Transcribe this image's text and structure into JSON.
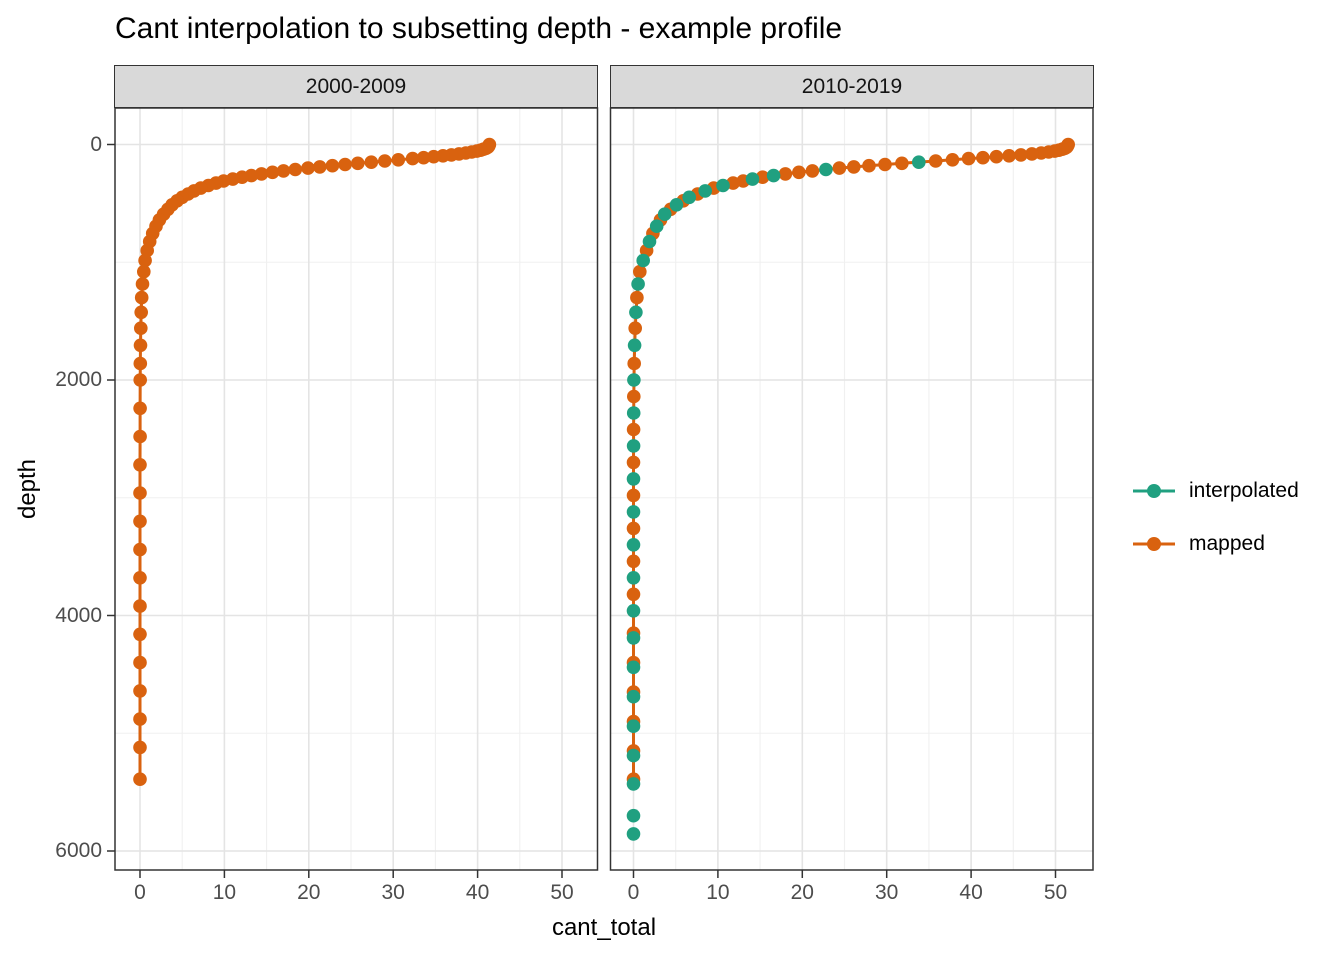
{
  "chart_data": {
    "type": "line",
    "title": "Cant interpolation to subsetting depth - example profile",
    "xlabel": "cant_total",
    "ylabel": "depth",
    "x_ticks": [
      0,
      10,
      20,
      30,
      40,
      50
    ],
    "y_ticks": [
      0,
      2000,
      4000,
      6000
    ],
    "x_minor": [
      5,
      15,
      25,
      35,
      45
    ],
    "y_minor": [
      1000,
      3000,
      5000
    ],
    "xlim": [
      -3,
      54.2
    ],
    "ylim": [
      -310,
      6150
    ],
    "y_reversed": true,
    "grid": "on",
    "legend_position": "right",
    "legend": [
      {
        "label": "interpolated",
        "color": "#20A080"
      },
      {
        "label": "mapped",
        "color": "#D9620F"
      }
    ],
    "facets": [
      {
        "label": "2000-2009",
        "series": [
          {
            "name": "mapped",
            "color": "#D9620F",
            "line": true,
            "points": [
              [
                41.4,
                0
              ],
              [
                41.35,
                8
              ],
              [
                41.3,
                16
              ],
              [
                41.2,
                24
              ],
              [
                41.0,
                32
              ],
              [
                40.7,
                40
              ],
              [
                40.35,
                48
              ],
              [
                39.9,
                56
              ],
              [
                39.3,
                64
              ],
              [
                38.6,
                72
              ],
              [
                37.8,
                80
              ],
              [
                36.9,
                88
              ],
              [
                35.9,
                96
              ],
              [
                34.8,
                104
              ],
              [
                33.6,
                112
              ],
              [
                32.3,
                120
              ],
              [
                30.6,
                130
              ],
              [
                29.0,
                140
              ],
              [
                27.4,
                150
              ],
              [
                25.8,
                160
              ],
              [
                24.3,
                170
              ],
              [
                22.8,
                180
              ],
              [
                21.3,
                190
              ],
              [
                19.9,
                200
              ],
              [
                18.4,
                212
              ],
              [
                17.0,
                224
              ],
              [
                15.7,
                236
              ],
              [
                14.4,
                250
              ],
              [
                13.2,
                264
              ],
              [
                12.1,
                278
              ],
              [
                11.0,
                294
              ],
              [
                9.9,
                310
              ],
              [
                9.0,
                328
              ],
              [
                8.1,
                348
              ],
              [
                7.2,
                370
              ],
              [
                6.4,
                394
              ],
              [
                5.7,
                420
              ],
              [
                5.0,
                448
              ],
              [
                4.4,
                478
              ],
              [
                3.8,
                512
              ],
              [
                3.3,
                550
              ],
              [
                2.8,
                592
              ],
              [
                2.3,
                640
              ],
              [
                1.9,
                694
              ],
              [
                1.5,
                755
              ],
              [
                1.15,
                824
              ],
              [
                0.85,
                900
              ],
              [
                0.6,
                985
              ],
              [
                0.45,
                1080
              ],
              [
                0.3,
                1185
              ],
              [
                0.2,
                1300
              ],
              [
                0.14,
                1425
              ],
              [
                0.1,
                1560
              ],
              [
                0.06,
                1705
              ],
              [
                0.03,
                1860
              ],
              [
                0.02,
                2000
              ],
              [
                0.01,
                2240
              ],
              [
                0.01,
                2480
              ],
              [
                0.0,
                2720
              ],
              [
                0.0,
                2960
              ],
              [
                0.0,
                3200
              ],
              [
                0.0,
                3440
              ],
              [
                0.0,
                3680
              ],
              [
                0.0,
                3920
              ],
              [
                0.0,
                4160
              ],
              [
                0.0,
                4400
              ],
              [
                0.0,
                4640
              ],
              [
                0.0,
                4880
              ],
              [
                0.0,
                5120
              ],
              [
                0.0,
                5390
              ]
            ]
          }
        ]
      },
      {
        "label": "2010-2019",
        "series": [
          {
            "name": "mapped",
            "color": "#D9620F",
            "line": true,
            "points": [
              [
                51.5,
                0
              ],
              [
                51.45,
                8
              ],
              [
                51.4,
                16
              ],
              [
                51.3,
                24
              ],
              [
                51.1,
                32
              ],
              [
                50.8,
                40
              ],
              [
                50.4,
                48
              ],
              [
                49.9,
                56
              ],
              [
                49.2,
                64
              ],
              [
                48.3,
                72
              ],
              [
                47.2,
                80
              ],
              [
                45.9,
                88
              ],
              [
                44.5,
                96
              ],
              [
                43.0,
                104
              ],
              [
                41.4,
                112
              ],
              [
                39.7,
                120
              ],
              [
                37.8,
                130
              ],
              [
                35.8,
                140
              ],
              [
                31.8,
                160
              ],
              [
                29.8,
                170
              ],
              [
                27.9,
                180
              ],
              [
                26.1,
                190
              ],
              [
                24.4,
                200
              ],
              [
                21.2,
                224
              ],
              [
                19.6,
                236
              ],
              [
                18.0,
                250
              ],
              [
                15.3,
                278
              ],
              [
                13.0,
                310
              ],
              [
                11.8,
                328
              ],
              [
                9.5,
                370
              ],
              [
                7.6,
                420
              ],
              [
                5.9,
                478
              ],
              [
                4.4,
                550
              ],
              [
                3.2,
                640
              ],
              [
                2.3,
                755
              ],
              [
                1.55,
                900
              ],
              [
                0.75,
                1080
              ],
              [
                0.4,
                1300
              ],
              [
                0.2,
                1560
              ],
              [
                0.08,
                1860
              ],
              [
                0.03,
                2140
              ],
              [
                0.01,
                2420
              ],
              [
                0.0,
                2700
              ],
              [
                0.0,
                2980
              ],
              [
                0.0,
                3260
              ],
              [
                0.0,
                3540
              ],
              [
                0.0,
                3820
              ],
              [
                0.0,
                4150
              ],
              [
                0.0,
                4400
              ],
              [
                0.0,
                4650
              ],
              [
                0.0,
                4900
              ],
              [
                0.0,
                5150
              ],
              [
                0.0,
                5390
              ]
            ]
          },
          {
            "name": "interpolated",
            "color": "#20A080",
            "line": false,
            "points": [
              [
                33.8,
                150
              ],
              [
                22.8,
                212
              ],
              [
                16.6,
                264
              ],
              [
                14.1,
                294
              ],
              [
                10.6,
                348
              ],
              [
                8.5,
                394
              ],
              [
                6.6,
                448
              ],
              [
                5.1,
                512
              ],
              [
                3.7,
                592
              ],
              [
                2.75,
                694
              ],
              [
                1.9,
                824
              ],
              [
                1.15,
                985
              ],
              [
                0.55,
                1185
              ],
              [
                0.28,
                1425
              ],
              [
                0.13,
                1705
              ],
              [
                0.05,
                2000
              ],
              [
                0.02,
                2280
              ],
              [
                0.01,
                2560
              ],
              [
                0.0,
                2840
              ],
              [
                0.0,
                3120
              ],
              [
                0.0,
                3400
              ],
              [
                0.0,
                3680
              ],
              [
                0.0,
                3960
              ],
              [
                0.0,
                4190
              ],
              [
                0.0,
                4440
              ],
              [
                0.0,
                4690
              ],
              [
                0.0,
                4940
              ],
              [
                0.0,
                5190
              ],
              [
                0.0,
                5430
              ],
              [
                0.0,
                5700
              ],
              [
                0.0,
                5855
              ]
            ]
          }
        ]
      }
    ]
  }
}
